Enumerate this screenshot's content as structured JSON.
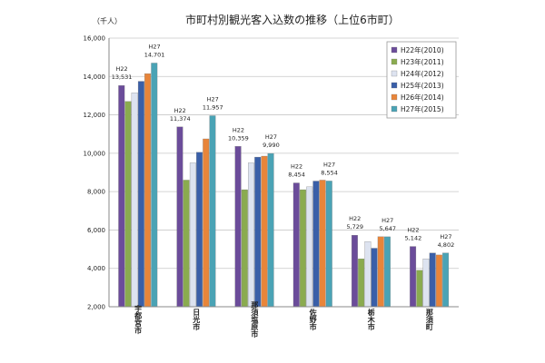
{
  "chart_data": {
    "type": "bar",
    "title": "市町村別観光客入込数の推移（上位6市町）",
    "unit_label": "（千人）",
    "ylim": [
      2000,
      16000
    ],
    "yticks": [
      "2,000",
      "4,000",
      "6,000",
      "8,000",
      "10,000",
      "12,000",
      "14,000",
      "16,000"
    ],
    "categories": [
      "宇都宮市",
      "日光市",
      "那須塩原市",
      "佐野市",
      "栃木市",
      "那須町"
    ],
    "legend_position": "top-right",
    "grid": true,
    "series": [
      {
        "name": "H22年(2010)",
        "color": "#6b4c9a",
        "values": [
          13531,
          11374,
          10359,
          8454,
          5729,
          5142
        ]
      },
      {
        "name": "H23年(2011)",
        "color": "#8aab4f",
        "values": [
          12700,
          8600,
          8100,
          8100,
          4500,
          3900
        ]
      },
      {
        "name": "H24年(2012)",
        "color": "#dde3f0",
        "values": [
          13150,
          9500,
          9500,
          8250,
          5400,
          4500
        ]
      },
      {
        "name": "H25年(2013)",
        "color": "#3a5fa8",
        "values": [
          13750,
          10050,
          9800,
          8550,
          5050,
          4800
        ]
      },
      {
        "name": "H26年(2014)",
        "color": "#e8853a",
        "values": [
          14150,
          10750,
          9850,
          8600,
          5650,
          4700
        ]
      },
      {
        "name": "H27年(2015)",
        "color": "#4aa3b5",
        "values": [
          14701,
          11957,
          9990,
          8554,
          5647,
          4802
        ]
      }
    ],
    "annotations": [
      {
        "category": 0,
        "series": 0,
        "label": "H22",
        "value_text": "13,531"
      },
      {
        "category": 0,
        "series": 5,
        "label": "H27",
        "value_text": "14,701"
      },
      {
        "category": 1,
        "series": 0,
        "label": "H22",
        "value_text": "11,374"
      },
      {
        "category": 1,
        "series": 5,
        "label": "H27",
        "value_text": "11,957"
      },
      {
        "category": 2,
        "series": 0,
        "label": "H22",
        "value_text": "10,359"
      },
      {
        "category": 2,
        "series": 5,
        "label": "H27",
        "value_text": "9,990"
      },
      {
        "category": 3,
        "series": 0,
        "label": "H22",
        "value_text": "8,454"
      },
      {
        "category": 3,
        "series": 5,
        "label": "H27",
        "value_text": "8,554"
      },
      {
        "category": 4,
        "series": 0,
        "label": "H22",
        "value_text": "5,729"
      },
      {
        "category": 4,
        "series": 5,
        "label": "H27",
        "value_text": "5,647"
      },
      {
        "category": 5,
        "series": 0,
        "label": "H22",
        "value_text": "5,142"
      },
      {
        "category": 5,
        "series": 5,
        "label": "H27",
        "value_text": "4,802"
      }
    ]
  }
}
